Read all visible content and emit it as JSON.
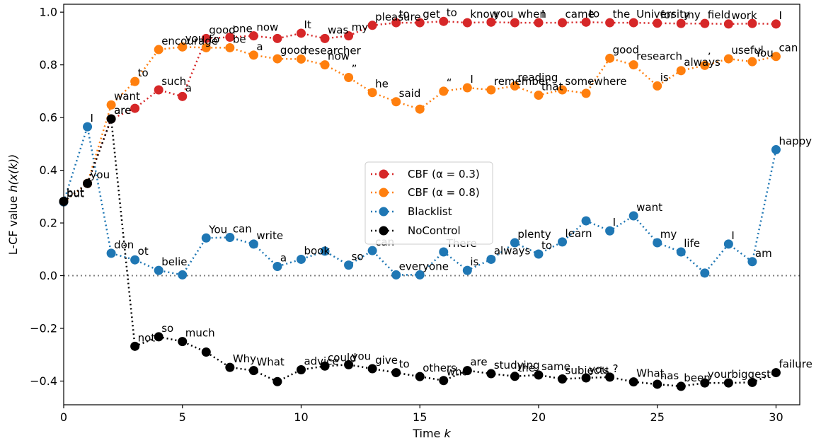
{
  "chart_data": {
    "type": "line",
    "xlabel": "Time k",
    "xlabel_main": "Time ",
    "xlabel_var": "k",
    "ylabel": "L-CF value h(x(k))",
    "ylabel_main": "L-CF value ",
    "ylabel_math": "h(x(k))",
    "xlim": [
      0,
      31
    ],
    "ylim": [
      -0.49,
      1.03
    ],
    "xticks": [
      0,
      5,
      10,
      15,
      20,
      25,
      30
    ],
    "yticks": [
      -0.4,
      -0.2,
      0.0,
      0.2,
      0.4,
      0.6,
      0.8,
      1.0
    ],
    "ytick_labels": [
      "−0.4",
      "−0.2",
      "0.0",
      "0.2",
      "0.4",
      "0.6",
      "0.8",
      "1.0"
    ],
    "reference_line": 0.0,
    "legend_position": "center",
    "series": [
      {
        "name": "CBF (α = 0.3)",
        "color": "#d62728",
        "x": [
          0,
          1,
          2,
          3,
          4,
          5,
          6,
          7,
          8,
          9,
          10,
          11,
          12,
          13,
          14,
          15,
          16,
          17,
          18,
          19,
          20,
          21,
          22,
          23,
          24,
          25,
          26,
          27,
          28,
          29,
          30
        ],
        "y": [
          0.28,
          0.35,
          0.595,
          0.635,
          0.705,
          0.68,
          0.9,
          0.905,
          0.91,
          0.9,
          0.92,
          0.9,
          0.91,
          0.95,
          0.96,
          0.96,
          0.965,
          0.96,
          0.962,
          0.96,
          0.96,
          0.96,
          0.962,
          0.96,
          0.96,
          0.958,
          0.957,
          0.957,
          0.955,
          0.957,
          0.955
        ],
        "labels": [
          "but",
          "you",
          "are",
          "",
          "such",
          "a",
          "good",
          "one",
          "now",
          "",
          "It",
          "was",
          "my",
          "pleasure",
          "to",
          "get",
          "to",
          "know",
          "you",
          "when",
          "I",
          "came",
          "to",
          "the",
          "University",
          "for",
          "my",
          "field",
          "work",
          "",
          "I"
        ]
      },
      {
        "name": "CBF (α = 0.8)",
        "color": "#ff7f0e",
        "x": [
          0,
          1,
          2,
          3,
          4,
          5,
          6,
          7,
          8,
          9,
          10,
          11,
          12,
          13,
          14,
          15,
          16,
          17,
          18,
          19,
          20,
          21,
          22,
          23,
          24,
          25,
          26,
          27,
          28,
          29,
          30
        ],
        "y": [
          0.28,
          0.35,
          0.648,
          0.737,
          0.858,
          0.868,
          0.865,
          0.865,
          0.837,
          0.823,
          0.822,
          0.8,
          0.752,
          0.695,
          0.66,
          0.632,
          0.7,
          0.713,
          0.705,
          0.72,
          0.685,
          0.705,
          0.692,
          0.825,
          0.8,
          0.72,
          0.778,
          0.798,
          0.823,
          0.812,
          0.832
        ],
        "labels": [
          "",
          "",
          "want",
          "to",
          "encourage",
          "you",
          "to",
          "be",
          "a",
          "good",
          "researcher",
          "now",
          "”",
          "he",
          "said",
          "",
          "“",
          "I",
          "remember",
          "reading",
          "that",
          "somewhere",
          "‘",
          "good",
          "research",
          "is",
          "always",
          "’",
          "useful",
          "You",
          "can"
        ]
      },
      {
        "name": "Blacklist",
        "color": "#1f77b4",
        "x": [
          0,
          1,
          2,
          3,
          4,
          5,
          6,
          7,
          8,
          9,
          10,
          11,
          12,
          13,
          14,
          15,
          16,
          17,
          18,
          19,
          20,
          21,
          22,
          23,
          24,
          25,
          26,
          27,
          28,
          29,
          30
        ],
        "y": [
          0.28,
          0.565,
          0.085,
          0.06,
          0.02,
          0.003,
          0.143,
          0.145,
          0.12,
          0.035,
          0.062,
          0.093,
          0.04,
          0.095,
          0.003,
          0.003,
          0.09,
          0.02,
          0.062,
          0.125,
          0.082,
          0.128,
          0.208,
          0.17,
          0.227,
          0.125,
          0.09,
          0.01,
          0.12,
          0.053,
          0.478
        ],
        "labels": [
          "",
          "I",
          "don",
          "ot",
          "belie",
          "",
          "You",
          "can",
          "write",
          "a",
          "book",
          "",
          "so",
          "can",
          "everyone",
          "",
          "There",
          "is",
          "always",
          "plenty",
          "to",
          "learn",
          "",
          "I",
          "want",
          "my",
          "life",
          "",
          "I",
          "am",
          "happy"
        ]
      },
      {
        "name": "NoControl",
        "color": "#000000",
        "x": [
          0,
          1,
          2,
          3,
          4,
          5,
          6,
          7,
          8,
          9,
          10,
          11,
          12,
          13,
          14,
          15,
          16,
          17,
          18,
          19,
          20,
          21,
          22,
          23,
          24,
          25,
          26,
          27,
          28,
          29,
          30
        ],
        "y": [
          0.282,
          0.35,
          0.595,
          -0.268,
          -0.232,
          -0.25,
          -0.29,
          -0.348,
          -0.36,
          -0.402,
          -0.357,
          -0.343,
          -0.338,
          -0.353,
          -0.368,
          -0.383,
          -0.398,
          -0.36,
          -0.372,
          -0.382,
          -0.377,
          -0.392,
          -0.388,
          -0.385,
          -0.403,
          -0.412,
          -0.42,
          -0.407,
          -0.407,
          -0.405,
          -0.368
        ],
        "labels": [
          "but",
          "",
          "are",
          "not",
          "so",
          "much",
          "",
          "Why",
          "What",
          "",
          "advice",
          "could",
          "you",
          "give",
          "to",
          "others",
          "who",
          "are",
          "studying",
          "the",
          "same",
          "subjects",
          "you",
          "?",
          "What",
          "has",
          "been",
          "your",
          "biggest",
          "",
          "failure"
        ]
      }
    ]
  }
}
